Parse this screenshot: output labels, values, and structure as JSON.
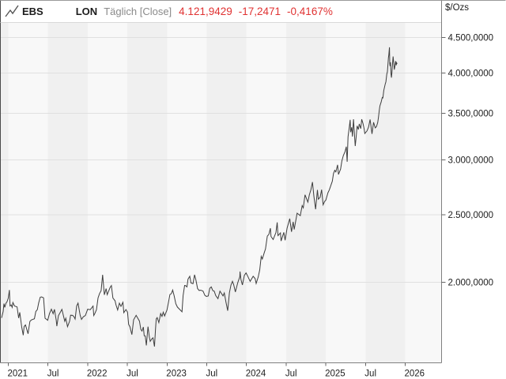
{
  "header": {
    "symbol": "EBS",
    "exchange": "LON",
    "series_label": "Täglich [Close]",
    "last_price": "4.121,9429",
    "change_abs": "-17,2471",
    "change_pct": "-0,4167%"
  },
  "style": {
    "accent_red": "#e03232",
    "muted_text": "#8a8a8a",
    "stripe_light": "#f8f8f8",
    "stripe_dark": "#f0f0f0",
    "grid_color": "#e0e0e0",
    "line_color": "#3d3d3d",
    "axis_color": "#808080",
    "left_border_color": "#4a4a4a",
    "top_border_color": "#9a9a9a",
    "header_rule_color": "#d9d9d9",
    "tick_color": "#666666",
    "label_color": "#1c1c1c"
  },
  "chart_data": {
    "type": "line",
    "name": "EBS LON Täglich [Close]",
    "title": "",
    "xlabel": "",
    "ylabel": "$/Ozs",
    "unit": "$/Ozs",
    "y_scale": "log",
    "grid": "horizontal",
    "legend": "none",
    "xlim": [
      2020.9,
      2026.46
    ],
    "ylim": [
      1532,
      4729
    ],
    "y_ticks": [
      {
        "label": "4.500,0000",
        "value": 4500
      },
      {
        "label": "4.000,0000",
        "value": 4000
      },
      {
        "label": "3.500,0000",
        "value": 3500
      },
      {
        "label": "3.000,0000",
        "value": 3000
      },
      {
        "label": "2.500,0000",
        "value": 2500
      },
      {
        "label": "2.000,0000",
        "value": 2000
      }
    ],
    "x_ticks": [
      {
        "label": "2021",
        "t": 2021.0
      },
      {
        "label": "Jul",
        "t": 2021.5
      },
      {
        "label": "2022",
        "t": 2022.0
      },
      {
        "label": "Jul",
        "t": 2022.5
      },
      {
        "label": "2023",
        "t": 2023.0
      },
      {
        "label": "Jul",
        "t": 2023.5
      },
      {
        "label": "2024",
        "t": 2024.0
      },
      {
        "label": "Jul",
        "t": 2024.5
      },
      {
        "label": "2025",
        "t": 2025.0
      },
      {
        "label": "Jul",
        "t": 2025.5
      },
      {
        "label": "2026",
        "t": 2026.0
      }
    ],
    "points": [
      [
        2020.915,
        1777
      ],
      [
        2020.935,
        1815
      ],
      [
        2020.945,
        1863
      ],
      [
        2020.955,
        1840
      ],
      [
        2020.97,
        1865
      ],
      [
        2020.985,
        1876
      ],
      [
        2021.0,
        1898
      ],
      [
        2021.014,
        1949
      ],
      [
        2021.022,
        1849
      ],
      [
        2021.036,
        1855
      ],
      [
        2021.049,
        1840
      ],
      [
        2021.058,
        1870
      ],
      [
        2021.079,
        1848
      ],
      [
        2021.111,
        1843
      ],
      [
        2021.13,
        1776
      ],
      [
        2021.144,
        1810
      ],
      [
        2021.169,
        1723
      ],
      [
        2021.188,
        1678
      ],
      [
        2021.199,
        1727
      ],
      [
        2021.216,
        1736
      ],
      [
        2021.249,
        1686
      ],
      [
        2021.272,
        1756
      ],
      [
        2021.291,
        1765
      ],
      [
        2021.329,
        1772
      ],
      [
        2021.347,
        1815
      ],
      [
        2021.366,
        1826
      ],
      [
        2021.383,
        1869
      ],
      [
        2021.402,
        1903
      ],
      [
        2021.419,
        1905
      ],
      [
        2021.444,
        1899
      ],
      [
        2021.463,
        1775
      ],
      [
        2021.496,
        1763
      ],
      [
        2021.519,
        1803
      ],
      [
        2021.543,
        1829
      ],
      [
        2021.565,
        1802
      ],
      [
        2021.582,
        1828
      ],
      [
        2021.604,
        1763
      ],
      [
        2021.612,
        1729
      ],
      [
        2021.631,
        1790
      ],
      [
        2021.65,
        1806
      ],
      [
        2021.675,
        1828
      ],
      [
        2021.711,
        1757
      ],
      [
        2021.724,
        1775
      ],
      [
        2021.746,
        1726
      ],
      [
        2021.772,
        1757
      ],
      [
        2021.785,
        1793
      ],
      [
        2021.81,
        1792
      ],
      [
        2021.829,
        1783
      ],
      [
        2021.842,
        1770
      ],
      [
        2021.862,
        1849
      ],
      [
        2021.878,
        1866
      ],
      [
        2021.905,
        1792
      ],
      [
        2021.922,
        1768
      ],
      [
        2021.944,
        1783
      ],
      [
        2021.971,
        1791
      ],
      [
        2022.0,
        1829
      ],
      [
        2022.033,
        1826
      ],
      [
        2022.068,
        1848
      ],
      [
        2022.077,
        1791
      ],
      [
        2022.092,
        1804
      ],
      [
        2022.111,
        1826
      ],
      [
        2022.13,
        1898
      ],
      [
        2022.149,
        1926
      ],
      [
        2022.169,
        1945
      ],
      [
        2022.188,
        2050
      ],
      [
        2022.21,
        1918
      ],
      [
        2022.232,
        1958
      ],
      [
        2022.246,
        1919
      ],
      [
        2022.283,
        1966
      ],
      [
        2022.299,
        1978
      ],
      [
        2022.318,
        1898
      ],
      [
        2022.345,
        1881
      ],
      [
        2022.358,
        1854
      ],
      [
        2022.377,
        1824
      ],
      [
        2022.399,
        1866
      ],
      [
        2022.419,
        1846
      ],
      [
        2022.444,
        1871
      ],
      [
        2022.455,
        1808
      ],
      [
        2022.482,
        1827
      ],
      [
        2022.502,
        1811
      ],
      [
        2022.516,
        1739
      ],
      [
        2022.532,
        1726
      ],
      [
        2022.557,
        1681
      ],
      [
        2022.579,
        1766
      ],
      [
        2022.611,
        1792
      ],
      [
        2022.625,
        1780
      ],
      [
        2022.652,
        1758
      ],
      [
        2022.669,
        1711
      ],
      [
        2022.684,
        1701
      ],
      [
        2022.701,
        1724
      ],
      [
        2022.712,
        1675
      ],
      [
        2022.725,
        1674
      ],
      [
        2022.739,
        1622
      ],
      [
        2022.76,
        1726
      ],
      [
        2022.777,
        1668
      ],
      [
        2022.788,
        1644
      ],
      [
        2022.807,
        1657
      ],
      [
        2022.823,
        1663
      ],
      [
        2022.842,
        1616
      ],
      [
        2022.855,
        1712
      ],
      [
        2022.864,
        1771
      ],
      [
        2022.875,
        1779
      ],
      [
        2022.896,
        1750
      ],
      [
        2022.919,
        1803
      ],
      [
        2022.936,
        1786
      ],
      [
        2022.952,
        1811
      ],
      [
        2022.969,
        1788
      ],
      [
        2022.999,
        1824
      ],
      [
        2023.016,
        1866
      ],
      [
        2023.036,
        1920
      ],
      [
        2023.055,
        1926
      ],
      [
        2023.071,
        1949
      ],
      [
        2023.089,
        1913
      ],
      [
        2023.111,
        1862
      ],
      [
        2023.13,
        1842
      ],
      [
        2023.16,
        1827
      ],
      [
        2023.188,
        1813
      ],
      [
        2023.202,
        1913
      ],
      [
        2023.221,
        1979
      ],
      [
        2023.232,
        1978
      ],
      [
        2023.251,
        1969
      ],
      [
        2023.264,
        2020
      ],
      [
        2023.286,
        2040
      ],
      [
        2023.302,
        1995
      ],
      [
        2023.327,
        1990
      ],
      [
        2023.347,
        2050
      ],
      [
        2023.364,
        2015
      ],
      [
        2023.384,
        1958
      ],
      [
        2023.404,
        1946
      ],
      [
        2023.422,
        1948
      ],
      [
        2023.452,
        1943
      ],
      [
        2023.477,
        1914
      ],
      [
        2023.496,
        1908
      ],
      [
        2023.519,
        1911
      ],
      [
        2023.538,
        1960
      ],
      [
        2023.557,
        1969
      ],
      [
        2023.577,
        1945
      ],
      [
        2023.594,
        1942
      ],
      [
        2023.614,
        1913
      ],
      [
        2023.641,
        1894
      ],
      [
        2023.666,
        1942
      ],
      [
        2023.705,
        1911
      ],
      [
        2023.721,
        1930
      ],
      [
        2023.741,
        1875
      ],
      [
        2023.764,
        1820
      ],
      [
        2023.786,
        1932
      ],
      [
        2023.805,
        1981
      ],
      [
        2023.824,
        2006
      ],
      [
        2023.839,
        1985
      ],
      [
        2023.861,
        1937
      ],
      [
        2023.891,
        1998
      ],
      [
        2023.916,
        2036
      ],
      [
        2023.919,
        2072
      ],
      [
        2023.93,
        2019
      ],
      [
        2023.949,
        1982
      ],
      [
        2023.974,
        2046
      ],
      [
        2023.995,
        2063
      ],
      [
        2024.014,
        2043
      ],
      [
        2024.047,
        2006
      ],
      [
        2024.085,
        2040
      ],
      [
        2024.11,
        2024
      ],
      [
        2024.123,
        1992
      ],
      [
        2024.148,
        2035
      ],
      [
        2024.167,
        2083
      ],
      [
        2024.186,
        2179
      ],
      [
        2024.2,
        2160
      ],
      [
        2024.225,
        2207
      ],
      [
        2024.24,
        2233
      ],
      [
        2024.263,
        2330
      ],
      [
        2024.283,
        2344
      ],
      [
        2024.302,
        2392
      ],
      [
        2024.31,
        2327
      ],
      [
        2024.337,
        2304
      ],
      [
        2024.372,
        2358
      ],
      [
        2024.387,
        2438
      ],
      [
        2024.397,
        2334
      ],
      [
        2024.428,
        2355
      ],
      [
        2024.436,
        2293
      ],
      [
        2024.471,
        2359
      ],
      [
        2024.487,
        2298
      ],
      [
        2024.512,
        2392
      ],
      [
        2024.546,
        2469
      ],
      [
        2024.568,
        2364
      ],
      [
        2024.589,
        2443
      ],
      [
        2024.602,
        2382
      ],
      [
        2024.638,
        2514
      ],
      [
        2024.678,
        2494
      ],
      [
        2024.702,
        2578
      ],
      [
        2024.716,
        2559
      ],
      [
        2024.738,
        2672
      ],
      [
        2024.774,
        2608
      ],
      [
        2024.793,
        2673
      ],
      [
        2024.812,
        2716
      ],
      [
        2024.832,
        2787
      ],
      [
        2024.85,
        2660
      ],
      [
        2024.872,
        2547
      ],
      [
        2024.894,
        2716
      ],
      [
        2024.905,
        2633
      ],
      [
        2024.928,
        2650
      ],
      [
        2024.947,
        2718
      ],
      [
        2024.966,
        2585
      ],
      [
        2024.985,
        2613
      ],
      [
        2025.0,
        2625
      ],
      [
        2025.027,
        2690
      ],
      [
        2025.044,
        2715
      ],
      [
        2025.082,
        2794
      ],
      [
        2025.097,
        2867
      ],
      [
        2025.113,
        2898
      ],
      [
        2025.126,
        2883
      ],
      [
        2025.148,
        2951
      ],
      [
        2025.159,
        2858
      ],
      [
        2025.186,
        2910
      ],
      [
        2025.202,
        2989
      ],
      [
        2025.221,
        3044
      ],
      [
        2025.243,
        3085
      ],
      [
        2025.258,
        3134
      ],
      [
        2025.269,
        2982
      ],
      [
        2025.28,
        3238
      ],
      [
        2025.296,
        3343
      ],
      [
        2025.307,
        3425
      ],
      [
        2025.313,
        3288
      ],
      [
        2025.326,
        3342
      ],
      [
        2025.336,
        3240
      ],
      [
        2025.349,
        3432
      ],
      [
        2025.371,
        3140
      ],
      [
        2025.381,
        3230
      ],
      [
        2025.394,
        3358
      ],
      [
        2025.41,
        3318
      ],
      [
        2025.421,
        3380
      ],
      [
        2025.44,
        3327
      ],
      [
        2025.452,
        3432
      ],
      [
        2025.468,
        3385
      ],
      [
        2025.483,
        3324
      ],
      [
        2025.491,
        3274
      ],
      [
        2025.519,
        3302
      ],
      [
        2025.538,
        3343
      ],
      [
        2025.558,
        3430
      ],
      [
        2025.582,
        3270
      ],
      [
        2025.602,
        3398
      ],
      [
        2025.623,
        3336
      ],
      [
        2025.637,
        3348
      ],
      [
        2025.653,
        3393
      ],
      [
        2025.662,
        3448
      ],
      [
        2025.673,
        3533
      ],
      [
        2025.681,
        3587
      ],
      [
        2025.697,
        3634
      ],
      [
        2025.711,
        3689
      ],
      [
        2025.719,
        3685
      ],
      [
        2025.73,
        3774
      ],
      [
        2025.749,
        3859
      ],
      [
        2025.757,
        3886
      ],
      [
        2025.768,
        3983
      ],
      [
        2025.776,
        4018
      ],
      [
        2025.789,
        4209
      ],
      [
        2025.794,
        4251
      ],
      [
        2025.802,
        4356
      ],
      [
        2025.806,
        4125
      ],
      [
        2025.81,
        4092
      ],
      [
        2025.815,
        4145
      ],
      [
        2025.822,
        3985
      ],
      [
        2025.827,
        3940
      ],
      [
        2025.833,
        4002
      ],
      [
        2025.84,
        4115
      ],
      [
        2025.848,
        4226
      ],
      [
        2025.856,
        4135
      ],
      [
        2025.863,
        4045
      ],
      [
        2025.871,
        4090
      ],
      [
        2025.879,
        4160
      ],
      [
        2025.886,
        4105
      ],
      [
        2025.892,
        4138
      ],
      [
        2025.897,
        4122
      ]
    ]
  }
}
